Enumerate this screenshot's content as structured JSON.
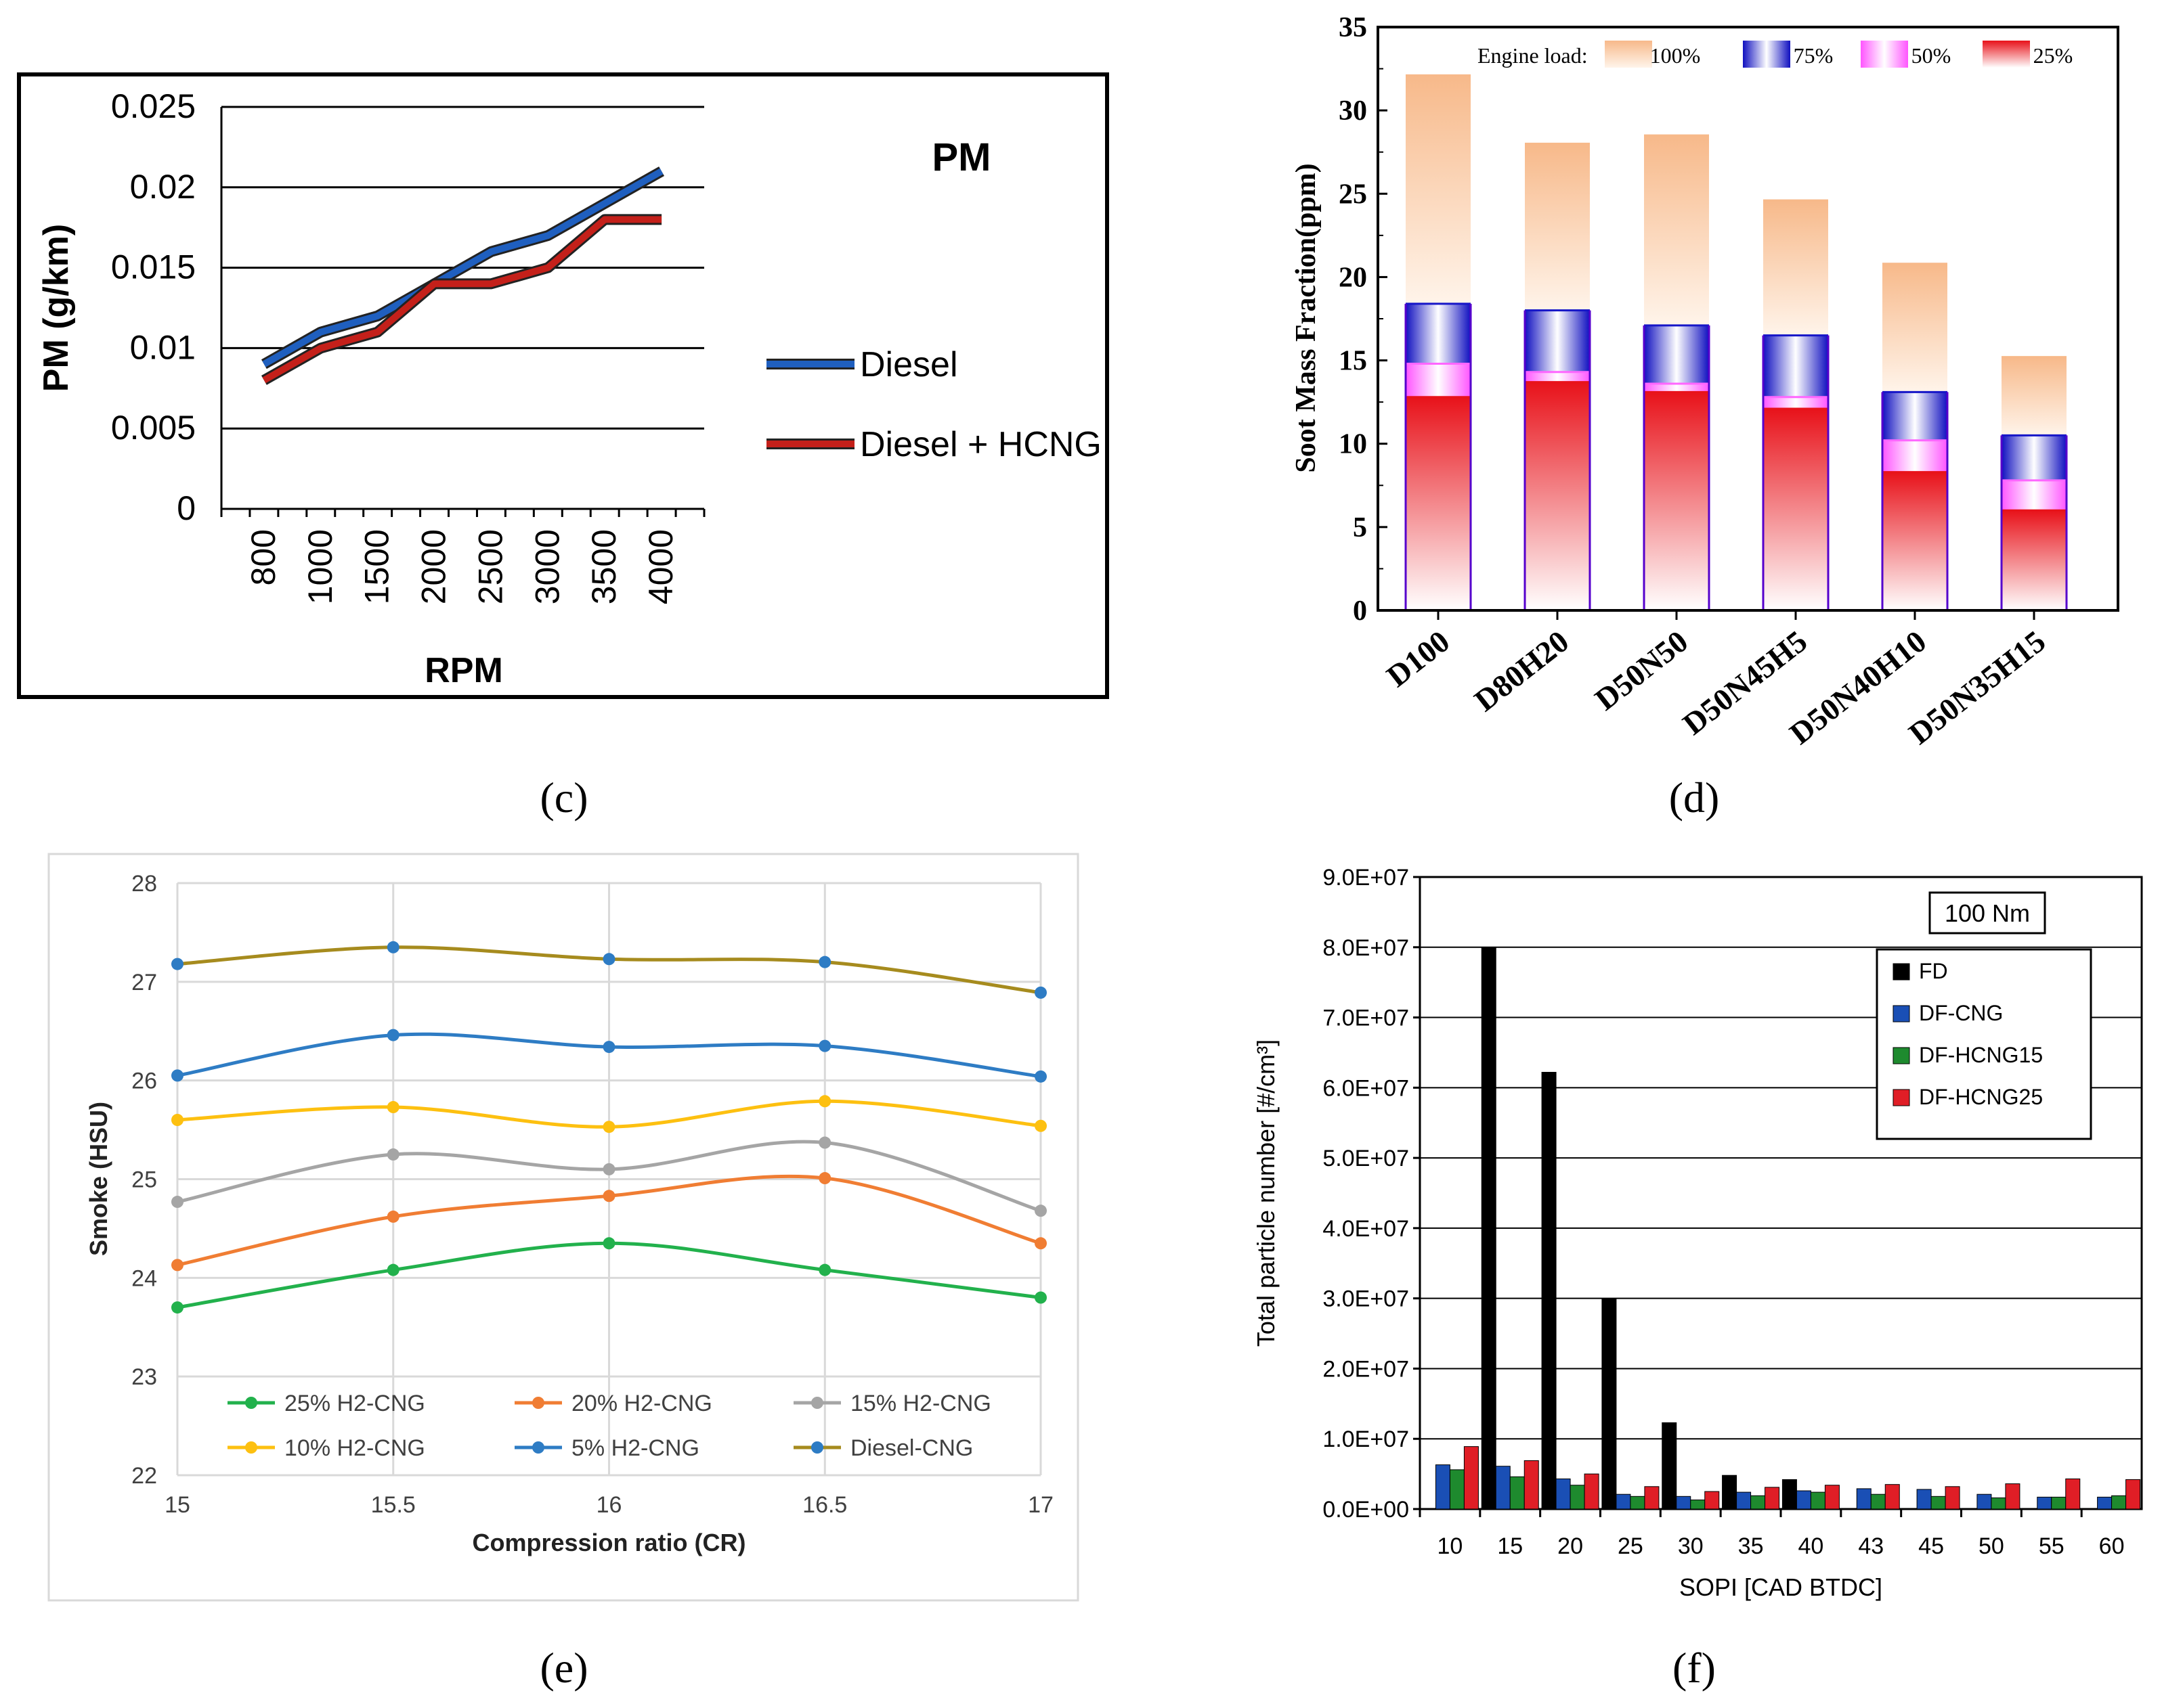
{
  "captions": [
    "(c)",
    "(d)",
    "(e)",
    "(f)"
  ],
  "chart_data": [
    {
      "id": "c",
      "type": "line",
      "title": "PM",
      "xlabel": "RPM",
      "ylabel": "PM (g/km)",
      "categories": [
        "800",
        "1000",
        "1500",
        "2000",
        "2500",
        "3000",
        "3500",
        "4000"
      ],
      "ylim": [
        0,
        0.025
      ],
      "yticks": [
        "0",
        "0.005",
        "0.01",
        "0.015",
        "0.02",
        "0.025"
      ],
      "grid": true,
      "legend_position": "right",
      "series": [
        {
          "name": "Diesel",
          "color": "#1f5fbf",
          "values": [
            0.009,
            0.011,
            0.012,
            0.014,
            0.016,
            0.017,
            0.019,
            0.021
          ]
        },
        {
          "name": "Diesel + HCNG",
          "color": "#c4201a",
          "values": [
            0.008,
            0.01,
            0.011,
            0.014,
            0.014,
            0.015,
            0.018,
            0.018
          ]
        }
      ]
    },
    {
      "id": "d",
      "type": "bar",
      "title": "",
      "xlabel": "",
      "ylabel": "Soot Mass Fraction(ppm)",
      "categories": [
        "D100",
        "D80H20",
        "D50N50",
        "D50N45H5",
        "D50N40H10",
        "D50N35H15"
      ],
      "ylim": [
        0,
        35
      ],
      "yticks": [
        "0",
        "5",
        "10",
        "15",
        "20",
        "25",
        "30",
        "35"
      ],
      "legend_title": "Engine load:",
      "legend_position": "top",
      "series": [
        {
          "name": "100%",
          "color": "#f7b98a",
          "values": [
            32.1,
            28.0,
            28.5,
            24.6,
            20.8,
            15.2
          ]
        },
        {
          "name": "75%",
          "color": "#1616c8",
          "values": [
            18.4,
            18.0,
            17.1,
            16.5,
            13.1,
            10.5
          ]
        },
        {
          "name": "50%",
          "color": "#ff66ff",
          "values": [
            14.8,
            14.3,
            13.6,
            12.8,
            10.2,
            7.8
          ]
        },
        {
          "name": "25%",
          "color": "#e8121a",
          "values": [
            12.8,
            13.7,
            13.1,
            12.1,
            8.3,
            6.0
          ]
        }
      ]
    },
    {
      "id": "e",
      "type": "line",
      "title": "",
      "xlabel": "Compression ratio (CR)",
      "ylabel": "Smoke (HSU)",
      "x": [
        15,
        15.5,
        16,
        16.5,
        17
      ],
      "xticks": [
        "15",
        "15.5",
        "16",
        "16.5",
        "17"
      ],
      "ylim": [
        22,
        28
      ],
      "yticks": [
        "22",
        "23",
        "24",
        "25",
        "26",
        "27",
        "28"
      ],
      "grid": true,
      "legend_position": "bottom-inside",
      "series": [
        {
          "name": "25% H2-CNG",
          "color": "#22b14c",
          "values": [
            23.7,
            24.08,
            24.35,
            24.08,
            23.8
          ]
        },
        {
          "name": "20% H2-CNG",
          "color": "#f07d33",
          "values": [
            24.13,
            24.62,
            24.83,
            25.01,
            24.35
          ]
        },
        {
          "name": "15% H2-CNG",
          "color": "#a5a5a5",
          "values": [
            24.77,
            25.25,
            25.1,
            25.37,
            24.68
          ]
        },
        {
          "name": "10% H2-CNG",
          "color": "#fdc010",
          "values": [
            25.6,
            25.73,
            25.53,
            25.79,
            25.54
          ]
        },
        {
          "name": "5% H2-CNG",
          "color": "#2e7cc4",
          "values": [
            26.05,
            26.46,
            26.34,
            26.35,
            26.04
          ]
        },
        {
          "name": "Diesel-CNG",
          "color": "#a68b1e",
          "values": [
            27.18,
            27.35,
            27.23,
            27.2,
            26.89
          ]
        }
      ]
    },
    {
      "id": "f",
      "type": "bar",
      "title": "",
      "annotation": "100 Nm",
      "xlabel": "SOPI [CAD BTDC]",
      "ylabel": "Total particle number [#/cm³]",
      "categories": [
        "10",
        "15",
        "20",
        "25",
        "30",
        "35",
        "40",
        "43",
        "45",
        "50",
        "55",
        "60"
      ],
      "ylim": [
        0,
        90000000
      ],
      "yticks": [
        "0.0E+00",
        "1.0E+07",
        "2.0E+07",
        "3.0E+07",
        "4.0E+07",
        "5.0E+07",
        "6.0E+07",
        "7.0E+07",
        "8.0E+07",
        "9.0E+07"
      ],
      "grid": true,
      "legend_position": "top-right",
      "series": [
        {
          "name": "FD",
          "color": "#000000",
          "values": [
            0,
            80000000,
            62200000,
            29900000,
            12300000,
            4800000,
            4200000,
            0,
            0,
            0,
            0,
            0
          ]
        },
        {
          "name": "DF-CNG",
          "color": "#1a4fb5",
          "values": [
            6300000,
            6100000,
            4300000,
            2100000,
            1800000,
            2400000,
            2600000,
            2900000,
            2800000,
            2100000,
            1700000,
            1700000
          ]
        },
        {
          "name": "DF-HCNG15",
          "color": "#1e8a2e",
          "values": [
            5600000,
            4600000,
            3400000,
            1800000,
            1300000,
            1900000,
            2400000,
            2100000,
            1800000,
            1600000,
            1700000,
            1900000
          ]
        },
        {
          "name": "DF-HCNG25",
          "color": "#e01e26",
          "values": [
            8900000,
            6900000,
            5000000,
            3200000,
            2500000,
            3100000,
            3400000,
            3500000,
            3200000,
            3600000,
            4300000,
            4200000
          ]
        }
      ]
    }
  ]
}
